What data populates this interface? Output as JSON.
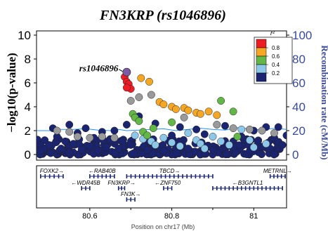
{
  "chart_data": {
    "type": "scatter",
    "title": "FN3KRP (rs1046896)",
    "ylabel": "−log10(p-value)",
    "y2label": "Recombination rate (cM/Mb)",
    "xlabel": "Position on chr17 (Mb)",
    "xlim": [
      80.47,
      81.08
    ],
    "ylim": [
      0,
      10
    ],
    "y2lim": [
      0,
      100
    ],
    "yticks": [
      "0",
      "2",
      "4",
      "6",
      "8",
      "10"
    ],
    "y2ticks": [
      "0",
      "20",
      "40",
      "60",
      "80",
      "100"
    ],
    "xticks": [
      "80.6",
      "80.8",
      "81"
    ],
    "grid": false,
    "legend": {
      "title": "r²",
      "position": "top-right",
      "labels": [
        "0.8",
        "0.6",
        "0.4",
        "0.2"
      ],
      "colors": [
        "#ee1c25",
        "#f5a623",
        "#63b746",
        "#8ec8e8",
        "#1b2470"
      ]
    },
    "lead_snp": {
      "label": "rs1046896",
      "x": 80.69,
      "y": 6.9,
      "color": "#7b5aa6"
    },
    "colors": {
      "navy": "#1b2470",
      "gray": "#9a9a9a",
      "lightblue": "#8ec8e8",
      "green": "#63b746",
      "orange": "#f5a623",
      "red": "#ee1c25",
      "recomb": "#1e90ff",
      "axis_right": "#3a4a9a"
    },
    "recombination_rate": [
      [
        80.47,
        20.0
      ],
      [
        80.5,
        20.0
      ],
      [
        80.53,
        21.0
      ],
      [
        80.56,
        21.0
      ],
      [
        80.59,
        21.5
      ],
      [
        80.62,
        20.5
      ],
      [
        80.65,
        20.0
      ],
      [
        80.67,
        21.0
      ],
      [
        80.69,
        20.0
      ],
      [
        80.72,
        20.5
      ],
      [
        80.75,
        21.0
      ],
      [
        80.78,
        21.5
      ],
      [
        80.81,
        20.0
      ],
      [
        80.84,
        21.0
      ],
      [
        80.87,
        22.0
      ],
      [
        80.9,
        21.0
      ],
      [
        80.93,
        20.5
      ],
      [
        80.96,
        22.5
      ],
      [
        80.99,
        21.5
      ],
      [
        81.02,
        20.5
      ],
      [
        81.05,
        22.0
      ],
      [
        81.08,
        21.0
      ]
    ],
    "points_red": [
      [
        80.685,
        6.5
      ],
      [
        80.69,
        6.1
      ],
      [
        80.695,
        5.9
      ],
      [
        80.7,
        5.5
      ],
      [
        80.69,
        5.6
      ]
    ],
    "points_orange": [
      [
        80.725,
        6.4
      ],
      [
        80.745,
        6.1
      ],
      [
        80.77,
        4.4
      ],
      [
        80.78,
        4.2
      ],
      [
        80.8,
        4.0
      ],
      [
        80.81,
        3.8
      ],
      [
        80.83,
        3.9
      ],
      [
        80.84,
        3.7
      ],
      [
        80.86,
        3.5
      ],
      [
        80.87,
        3.4
      ],
      [
        80.89,
        3.6
      ],
      [
        80.91,
        3.3
      ]
    ],
    "points_green": [
      [
        80.705,
        3.4
      ],
      [
        80.71,
        3.1
      ],
      [
        80.72,
        2.8
      ],
      [
        80.73,
        1.9
      ],
      [
        80.74,
        1.6
      ],
      [
        80.755,
        2.2
      ],
      [
        80.8,
        2.7
      ],
      [
        80.92,
        4.5
      ],
      [
        80.95,
        3.6
      ],
      [
        80.96,
        1.5
      ]
    ],
    "points_gray": [
      [
        80.52,
        2.0
      ],
      [
        80.55,
        1.9
      ],
      [
        80.57,
        1.5
      ],
      [
        80.6,
        1.4
      ],
      [
        80.63,
        1.5
      ],
      [
        80.66,
        1.4
      ],
      [
        80.7,
        4.5
      ],
      [
        80.72,
        4.8
      ],
      [
        80.75,
        5.0
      ],
      [
        80.83,
        3.1
      ],
      [
        80.91,
        2.5
      ],
      [
        80.95,
        2.2
      ],
      [
        80.99,
        2.1
      ],
      [
        81.02,
        2.0
      ],
      [
        81.05,
        1.8
      ]
    ],
    "points_lightblue": [
      [
        80.71,
        1.6
      ],
      [
        80.73,
        1.3
      ],
      [
        80.75,
        1.1
      ],
      [
        80.76,
        0.8
      ],
      [
        80.78,
        1.4
      ],
      [
        80.8,
        1.0
      ],
      [
        80.82,
        0.7
      ],
      [
        80.84,
        1.8
      ],
      [
        80.86,
        1.2
      ],
      [
        80.87,
        0.9
      ],
      [
        80.88,
        0.5
      ],
      [
        80.9,
        1.5
      ],
      [
        80.92,
        1.1
      ],
      [
        80.94,
        0.8
      ],
      [
        80.97,
        2.1
      ],
      [
        80.99,
        1.2
      ],
      [
        81.0,
        0.6
      ],
      [
        81.03,
        0.9
      ]
    ],
    "points_navy": [
      [
        80.48,
        0.3
      ],
      [
        80.49,
        1.2
      ],
      [
        80.5,
        0.8
      ],
      [
        80.51,
        2.2
      ],
      [
        80.52,
        1.5
      ],
      [
        80.53,
        0.5
      ],
      [
        80.54,
        1.1
      ],
      [
        80.55,
        2.5
      ],
      [
        80.56,
        0.9
      ],
      [
        80.57,
        1.8
      ],
      [
        80.58,
        0.4
      ],
      [
        80.59,
        2.2
      ],
      [
        80.6,
        0.7
      ],
      [
        80.61,
        1.4
      ],
      [
        80.62,
        0.3
      ],
      [
        80.63,
        1.9
      ],
      [
        80.64,
        0.6
      ],
      [
        80.65,
        1.2
      ],
      [
        80.66,
        2.0
      ],
      [
        80.67,
        0.5
      ],
      [
        80.68,
        1.1
      ],
      [
        80.69,
        2.5
      ],
      [
        80.7,
        0.8
      ],
      [
        80.72,
        3.2
      ],
      [
        80.74,
        0.4
      ],
      [
        80.76,
        2.6
      ],
      [
        80.78,
        0.3
      ],
      [
        80.8,
        1.6
      ],
      [
        80.82,
        2.3
      ],
      [
        80.84,
        0.5
      ],
      [
        80.86,
        2.1
      ],
      [
        80.88,
        1.7
      ],
      [
        80.9,
        0.4
      ],
      [
        80.93,
        2.4
      ],
      [
        80.95,
        0.6
      ],
      [
        80.97,
        1.5
      ],
      [
        80.99,
        0.3
      ],
      [
        81.0,
        2.0
      ],
      [
        81.01,
        1.1
      ],
      [
        81.03,
        2.3
      ],
      [
        81.04,
        0.5
      ],
      [
        81.05,
        1.4
      ],
      [
        81.06,
        2.3
      ],
      [
        81.07,
        0.8
      ],
      [
        81.08,
        1.6
      ]
    ],
    "points_base_count": 260,
    "genes": [
      {
        "name": "FOXK2",
        "start": 80.48,
        "end": 80.535,
        "strand": "+",
        "row": 0
      },
      {
        "name": "RAB40B",
        "start": 80.6,
        "end": 80.66,
        "strand": "-",
        "row": 0
      },
      {
        "name": "TBCD",
        "start": 80.69,
        "end": 80.9,
        "strand": "+",
        "row": 0
      },
      {
        "name": "METRNL",
        "start": 81.04,
        "end": 81.08,
        "strand": "+",
        "row": 0
      },
      {
        "name": "WDR45B",
        "start": 80.58,
        "end": 80.6,
        "strand": "-",
        "row": 1
      },
      {
        "name": "FN3KRP",
        "start": 80.67,
        "end": 80.685,
        "strand": "+",
        "row": 1
      },
      {
        "name": "ZNF750",
        "start": 80.78,
        "end": 80.8,
        "strand": "-",
        "row": 1
      },
      {
        "name": "B3GNTL1",
        "start": 80.9,
        "end": 81.07,
        "strand": "-",
        "row": 1
      },
      {
        "name": "FN3K",
        "start": 80.69,
        "end": 80.71,
        "strand": "+",
        "row": 2
      }
    ]
  }
}
